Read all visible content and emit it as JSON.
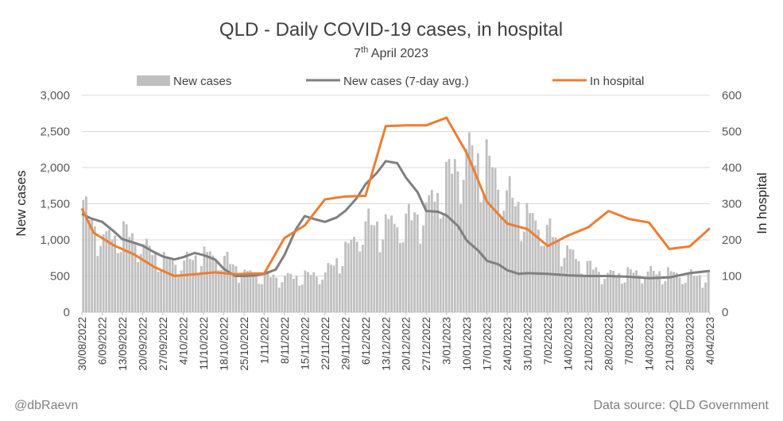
{
  "chart_data": {
    "type": "bar+line",
    "title": "QLD - Daily COVID-19 cases, in hospital",
    "subtitle_main": "7",
    "subtitle_sup": "th",
    "subtitle_rest": " April 2023",
    "ylabel_left": "New cases",
    "ylabel_right": "In hospital",
    "ylim_left": [
      0,
      3000
    ],
    "ylim_right": [
      0,
      600
    ],
    "yticks_left": [
      "0",
      "500",
      "1,000",
      "1,500",
      "2,000",
      "2,500",
      "3,000"
    ],
    "yticks_right": [
      "0",
      "100",
      "200",
      "300",
      "400",
      "500",
      "600"
    ],
    "x_start": "30/08/2022",
    "x_end": "4/04/2023",
    "x_tick_labels": [
      "30/08/2022",
      "6/09/2022",
      "13/09/2022",
      "20/09/2022",
      "27/09/2022",
      "4/10/2022",
      "11/10/2022",
      "18/10/2022",
      "25/10/2022",
      "1/11/2022",
      "8/11/2022",
      "15/11/2022",
      "22/11/2022",
      "29/11/2022",
      "6/12/2022",
      "13/12/2022",
      "20/12/2022",
      "27/12/2022",
      "3/01/2023",
      "10/01/2023",
      "17/01/2023",
      "24/01/2023",
      "31/01/2023",
      "7/02/2023",
      "14/02/2023",
      "21/02/2023",
      "28/02/2023",
      "7/03/2023",
      "14/03/2023",
      "21/03/2023",
      "28/03/2023",
      "4/04/2023"
    ],
    "grid": true,
    "legend_position": "top",
    "legend": [
      "New cases",
      "New cases (7-day avg.)",
      "In hospital"
    ],
    "colors": {
      "bars": "#bfbfbf",
      "avg_line": "#7f7f7f",
      "hospital_line": "#ed7d31",
      "grid": "#d9d9d9"
    },
    "new_cases_weekly": [
      1480,
      1050,
      1150,
      950,
      750,
      720,
      830,
      760,
      560,
      520,
      500,
      520,
      560,
      880,
      1250,
      1260,
      1300,
      1480,
      1900,
      2280,
      2150,
      1700,
      1380,
      1180,
      880,
      660,
      540,
      560,
      570,
      560,
      520,
      510,
      480,
      470,
      460,
      510,
      560,
      600
    ],
    "new_cases_7day_avg": {
      "dates": [
        "30/08/2022",
        "2/09/2022",
        "6/09/2022",
        "10/09/2022",
        "13/09/2022",
        "17/09/2022",
        "20/09/2022",
        "24/09/2022",
        "27/09/2022",
        "1/10/2022",
        "4/10/2022",
        "8/10/2022",
        "11/10/2022",
        "15/10/2022",
        "18/10/2022",
        "22/10/2022",
        "25/10/2022",
        "29/10/2022",
        "1/11/2022",
        "5/11/2022",
        "8/11/2022",
        "12/11/2022",
        "15/11/2022",
        "19/11/2022",
        "22/11/2022",
        "26/11/2022",
        "29/11/2022",
        "3/12/2022",
        "6/12/2022",
        "10/12/2022",
        "13/12/2022",
        "17/12/2022",
        "20/12/2022",
        "24/12/2022",
        "27/12/2022",
        "31/12/2022",
        "3/01/2023",
        "7/01/2023",
        "10/01/2023",
        "14/01/2023",
        "17/01/2023",
        "21/01/2023",
        "24/01/2023",
        "28/01/2023",
        "31/01/2023",
        "7/02/2023",
        "14/02/2023",
        "21/02/2023",
        "28/02/2023",
        "7/03/2023",
        "14/03/2023",
        "21/03/2023",
        "28/03/2023",
        "4/04/2023"
      ],
      "values": [
        1360,
        1300,
        1250,
        1120,
        1010,
        960,
        920,
        830,
        770,
        730,
        760,
        820,
        790,
        730,
        600,
        500,
        500,
        510,
        530,
        590,
        790,
        1150,
        1330,
        1280,
        1250,
        1310,
        1400,
        1580,
        1770,
        1930,
        2090,
        2060,
        1860,
        1660,
        1400,
        1390,
        1340,
        1190,
        990,
        850,
        710,
        660,
        580,
        530,
        540,
        530,
        510,
        500,
        500,
        490,
        470,
        480,
        540,
        570
      ]
    },
    "in_hospital": {
      "dates": [
        "30/08/2022",
        "3/09/2022",
        "10/09/2022",
        "17/09/2022",
        "24/09/2022",
        "1/10/2022",
        "8/10/2022",
        "15/10/2022",
        "22/10/2022",
        "29/10/2022",
        "1/11/2022",
        "8/11/2022",
        "15/11/2022",
        "22/11/2022",
        "29/11/2022",
        "6/12/2022",
        "13/12/2022",
        "20/12/2022",
        "27/12/2022",
        "3/01/2023",
        "10/01/2023",
        "17/01/2023",
        "24/01/2023",
        "31/01/2023",
        "7/02/2023",
        "14/02/2023",
        "21/02/2023",
        "28/02/2023",
        "7/03/2023",
        "14/03/2023",
        "21/03/2023",
        "28/03/2023",
        "4/04/2023"
      ],
      "values": [
        287,
        220,
        185,
        160,
        125,
        100,
        105,
        110,
        105,
        107,
        107,
        205,
        240,
        312,
        320,
        322,
        515,
        517,
        517,
        538,
        440,
        305,
        245,
        230,
        183,
        212,
        235,
        280,
        258,
        248,
        175,
        182,
        232
      ]
    }
  },
  "footer": {
    "left": "@dbRaevn",
    "right": "Data source: QLD Government"
  }
}
